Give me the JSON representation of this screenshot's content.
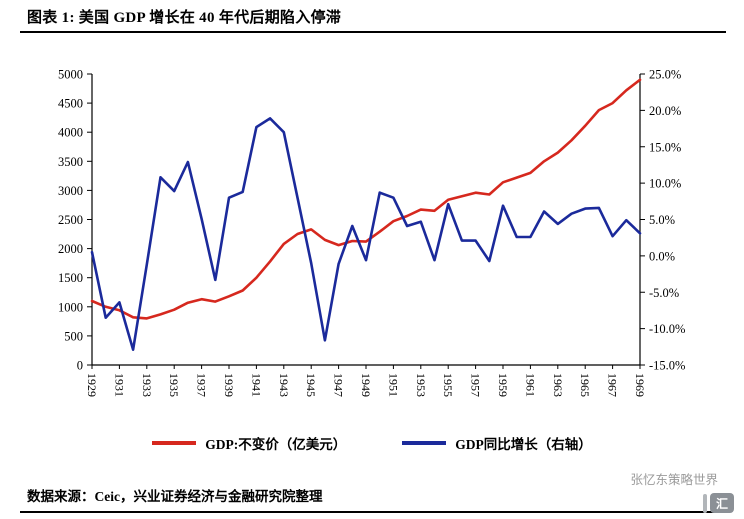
{
  "chart_data": {
    "type": "line",
    "title": "图表 1:  美国 GDP 增长在 40 年代后期陷入停滞",
    "x": [
      1929,
      1930,
      1931,
      1932,
      1933,
      1934,
      1935,
      1936,
      1937,
      1938,
      1939,
      1940,
      1941,
      1942,
      1943,
      1944,
      1945,
      1946,
      1947,
      1948,
      1949,
      1950,
      1951,
      1952,
      1953,
      1954,
      1955,
      1956,
      1957,
      1958,
      1959,
      1960,
      1961,
      1962,
      1963,
      1964,
      1965,
      1966,
      1967,
      1968,
      1969
    ],
    "x_label_step": 2,
    "grid": false,
    "legend_position": "bottom",
    "left_axis": {
      "min": 0,
      "max": 5000,
      "step": 500
    },
    "right_axis": {
      "min": -15,
      "max": 25,
      "step": 5,
      "unit": "%",
      "decimals": 1
    },
    "series": [
      {
        "name": "GDP:不变价（亿美元）",
        "axis": "left",
        "color": "#d6281e",
        "values": [
          1100,
          1000,
          940,
          820,
          800,
          870,
          950,
          1070,
          1130,
          1090,
          1180,
          1280,
          1500,
          1780,
          2080,
          2250,
          2330,
          2150,
          2060,
          2130,
          2120,
          2290,
          2470,
          2560,
          2670,
          2650,
          2840,
          2900,
          2960,
          2930,
          3140,
          3220,
          3300,
          3500,
          3650,
          3860,
          4110,
          4380,
          4500,
          4720,
          4900
        ]
      },
      {
        "name": "GDP同比增长（右轴）",
        "axis": "right",
        "color": "#1b2a9b",
        "values": [
          0.5,
          -8.5,
          -6.4,
          -12.9,
          -1.2,
          10.8,
          8.9,
          12.9,
          5.1,
          -3.3,
          8.0,
          8.8,
          17.7,
          18.9,
          17.0,
          8.0,
          -1.0,
          -11.6,
          -1.1,
          4.1,
          -0.6,
          8.7,
          8.0,
          4.1,
          4.7,
          -0.6,
          7.1,
          2.1,
          2.1,
          -0.7,
          6.9,
          2.6,
          2.6,
          6.1,
          4.4,
          5.8,
          6.5,
          6.6,
          2.7,
          4.9,
          3.1
        ]
      }
    ]
  },
  "source": {
    "text": "数据来源：Ceic，兴业证券经济与金融研究院整理"
  },
  "watermark": {
    "text": "张忆东策略世界",
    "logo_text": "汇"
  }
}
